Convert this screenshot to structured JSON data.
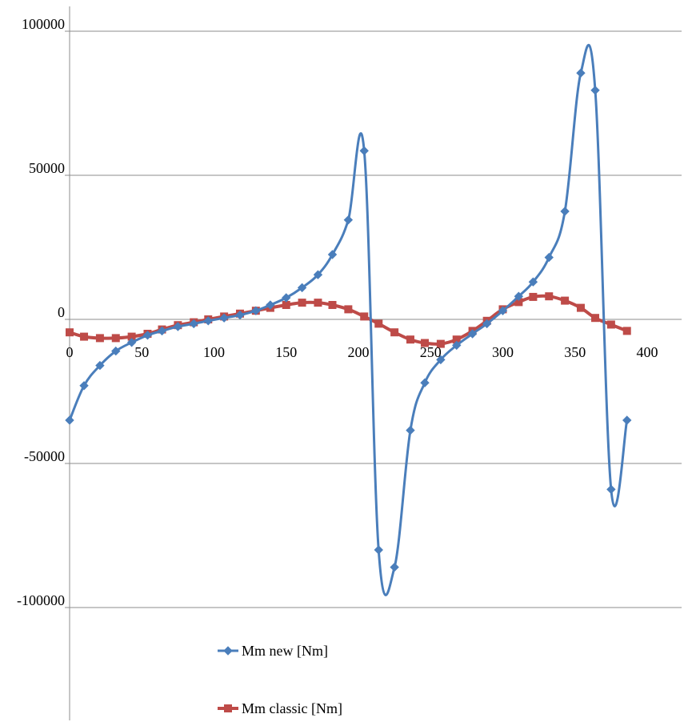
{
  "chart_data": {
    "type": "line",
    "title": "",
    "xlabel": "",
    "ylabel": "",
    "xlim": [
      0,
      420
    ],
    "ylim": [
      -130000,
      110000
    ],
    "x_ticks": [
      "0",
      "50",
      "100",
      "150",
      "200",
      "250",
      "300",
      "350",
      "400"
    ],
    "x_tick_values": [
      0,
      50,
      100,
      150,
      200,
      250,
      300,
      350,
      400
    ],
    "y_ticks": [
      "100000",
      "50000",
      "0",
      "-50000",
      "-100000"
    ],
    "y_tick_values": [
      100000,
      50000,
      0,
      -50000,
      -100000
    ],
    "grid": "horizontal",
    "legend_position": "bottom",
    "series": [
      {
        "name": "Mm new [Nm]",
        "color": "#4a7ebb",
        "marker": "diamond",
        "x": [
          0,
          10,
          21,
          32,
          43,
          54,
          64,
          75,
          86,
          96,
          107,
          118,
          129,
          139,
          150,
          161,
          172,
          182,
          193,
          204,
          214,
          225,
          236,
          246,
          257,
          268,
          279,
          289,
          300,
          311,
          321,
          332,
          343,
          354,
          364,
          375,
          386
        ],
        "y": [
          -35000,
          -23000,
          -16000,
          -11000,
          -8000,
          -5500,
          -4000,
          -2500,
          -1500,
          -500,
          500,
          1500,
          3000,
          5000,
          7500,
          11000,
          15500,
          22500,
          34500,
          58500,
          -80000,
          -86000,
          -38500,
          -22000,
          -14000,
          -9000,
          -5000,
          -1500,
          3000,
          8000,
          13000,
          21500,
          37500,
          85500,
          79500,
          -59000,
          -35000
        ]
      },
      {
        "name": "Mm classic [Nm]",
        "color": "#be4b48",
        "marker": "square",
        "x": [
          0,
          10,
          21,
          32,
          43,
          54,
          64,
          75,
          86,
          96,
          107,
          118,
          129,
          139,
          150,
          161,
          172,
          182,
          193,
          204,
          214,
          225,
          236,
          246,
          257,
          268,
          279,
          289,
          300,
          311,
          321,
          332,
          343,
          354,
          364,
          375,
          386
        ],
        "y": [
          -4500,
          -6000,
          -6500,
          -6500,
          -6000,
          -5000,
          -3500,
          -2000,
          -1000,
          0,
          1000,
          2000,
          3000,
          4000,
          5000,
          5800,
          5800,
          5000,
          3500,
          1000,
          -1500,
          -4500,
          -7000,
          -8200,
          -8500,
          -7000,
          -4000,
          -500,
          3500,
          6000,
          7800,
          8000,
          6500,
          4000,
          500,
          -1800,
          -4000
        ]
      }
    ]
  }
}
